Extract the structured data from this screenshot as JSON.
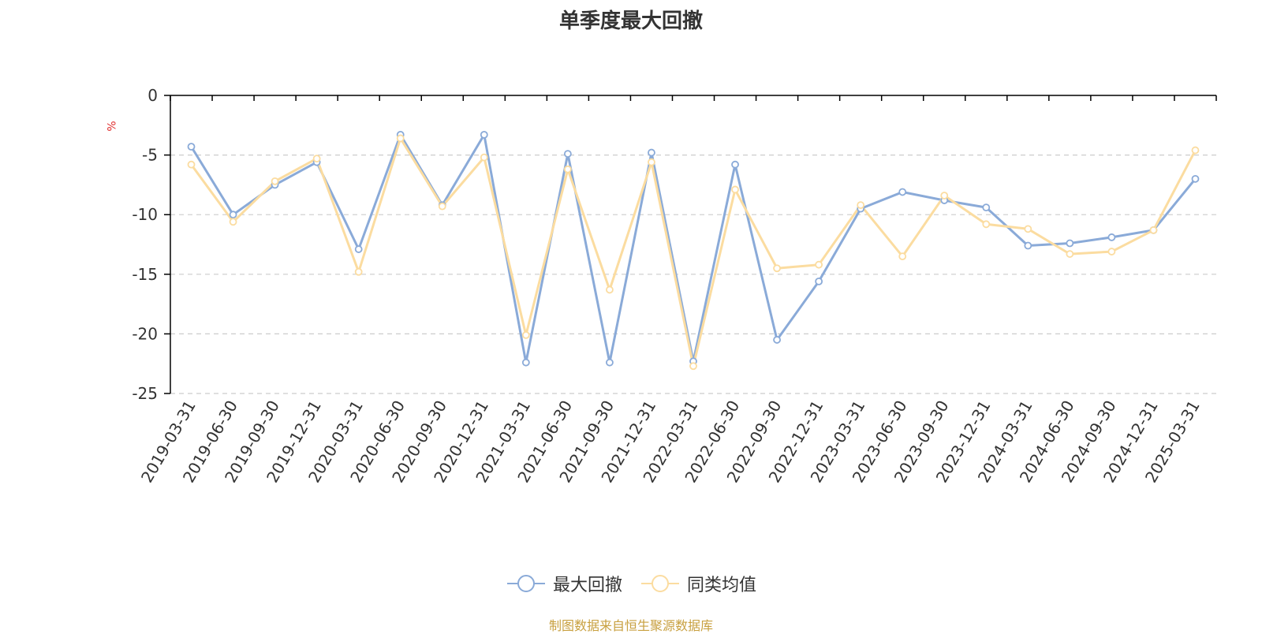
{
  "chart_data": {
    "type": "line",
    "title": "单季度最大回撤",
    "ylabel": "%",
    "ylim": [
      -25,
      0
    ],
    "yticks": [
      0,
      -5,
      -10,
      -15,
      -20,
      -25
    ],
    "grid": true,
    "legend_position": "bottom",
    "categories": [
      "2019-03-31",
      "2019-06-30",
      "2019-09-30",
      "2019-12-31",
      "2020-03-31",
      "2020-06-30",
      "2020-09-30",
      "2020-12-31",
      "2021-03-31",
      "2021-06-30",
      "2021-09-30",
      "2021-12-31",
      "2022-03-31",
      "2022-06-30",
      "2022-09-30",
      "2022-12-31",
      "2023-03-31",
      "2023-06-30",
      "2023-09-30",
      "2023-12-31",
      "2024-03-31",
      "2024-06-30",
      "2024-09-30",
      "2024-12-31",
      "2025-03-31"
    ],
    "series": [
      {
        "name": "最大回撤",
        "color": "#8aaad8",
        "values": [
          -4.3,
          -10.0,
          -7.5,
          -5.6,
          -12.9,
          -3.3,
          -9.2,
          -3.3,
          -22.4,
          -4.9,
          -22.4,
          -4.8,
          -22.3,
          -5.8,
          -20.5,
          -15.6,
          -9.5,
          -8.1,
          -8.8,
          -9.4,
          -12.6,
          -12.4,
          -11.9,
          -11.3,
          -7.0
        ]
      },
      {
        "name": "同类均值",
        "color": "#fbdca0",
        "values": [
          -5.8,
          -10.6,
          -7.2,
          -5.3,
          -14.8,
          -3.6,
          -9.3,
          -5.2,
          -20.1,
          -6.2,
          -16.3,
          -5.6,
          -22.7,
          -7.9,
          -14.5,
          -14.2,
          -9.2,
          -13.5,
          -8.4,
          -10.8,
          -11.2,
          -13.3,
          -13.1,
          -11.3,
          -4.6
        ]
      }
    ],
    "source": "制图数据来自恒生聚源数据库"
  },
  "colors": {
    "source_text": "#c8a040",
    "axis": "#000000",
    "grid": "#cccccc"
  }
}
